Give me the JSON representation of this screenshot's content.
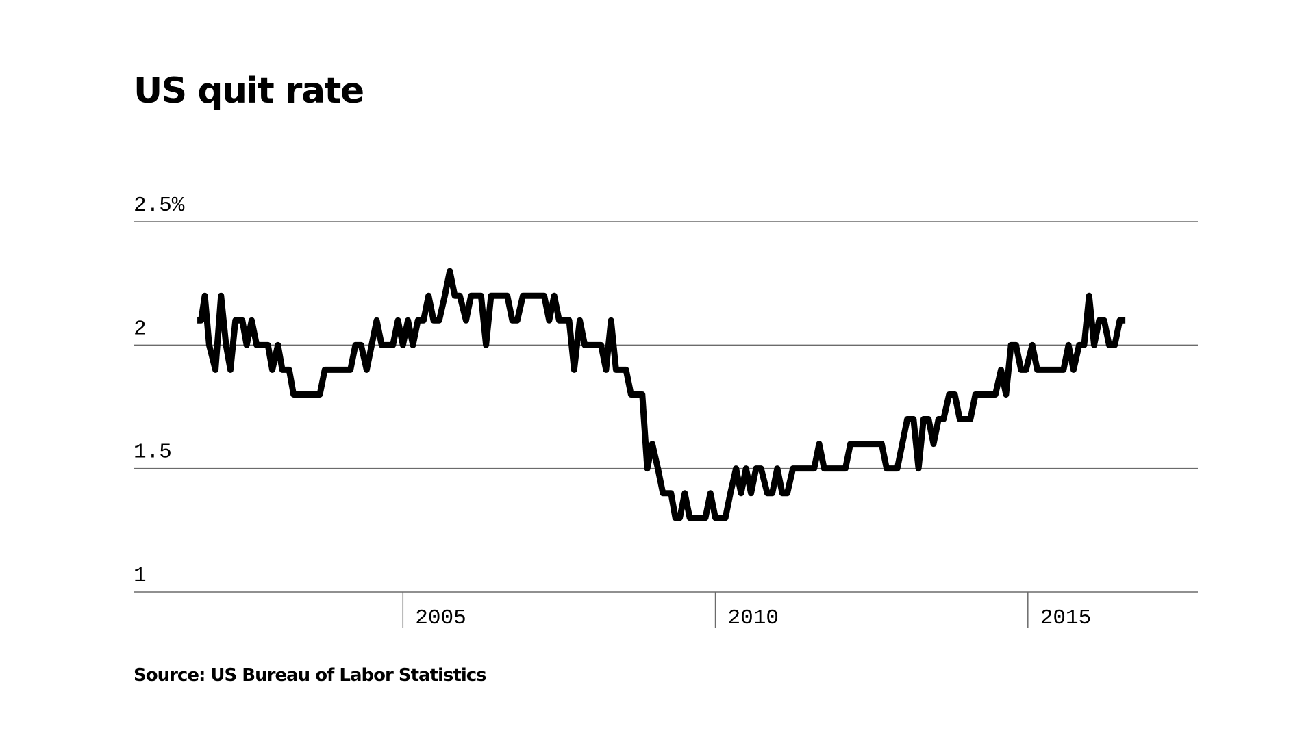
{
  "chart_data": {
    "type": "line",
    "title": "US quit rate",
    "source": "Source: US Bureau of Labor Statistics",
    "x": [
      2001.71,
      2001.77,
      2001.83,
      2001.9,
      2002.0,
      2002.09,
      2002.17,
      2002.24,
      2002.32,
      2002.43,
      2002.5,
      2002.58,
      2002.66,
      2002.84,
      2002.91,
      2003.0,
      2003.07,
      2003.18,
      2003.25,
      2003.67,
      2003.75,
      2004.16,
      2004.24,
      2004.33,
      2004.42,
      2004.58,
      2004.66,
      2004.84,
      2004.92,
      2005.0,
      2005.08,
      2005.16,
      2005.24,
      2005.33,
      2005.41,
      2005.49,
      2005.58,
      2005.67,
      2005.75,
      2005.83,
      2005.91,
      2006.01,
      2006.09,
      2006.25,
      2006.33,
      2006.41,
      2006.67,
      2006.75,
      2006.83,
      2006.92,
      2007.26,
      2007.34,
      2007.42,
      2007.5,
      2007.66,
      2007.74,
      2007.83,
      2007.91,
      2008.17,
      2008.25,
      2008.33,
      2008.41,
      2008.57,
      2008.65,
      2008.83,
      2008.91,
      2008.99,
      2009.08,
      2009.16,
      2009.29,
      2009.36,
      2009.43,
      2009.51,
      2009.59,
      2009.84,
      2009.92,
      2010.0,
      2010.16,
      2010.24,
      2010.33,
      2010.41,
      2010.49,
      2010.57,
      2010.65,
      2010.73,
      2010.83,
      2010.91,
      2010.99,
      2011.07,
      2011.15,
      2011.24,
      2011.58,
      2011.66,
      2011.74,
      2012.08,
      2012.16,
      2012.66,
      2012.74,
      2012.91,
      2012.99,
      2013.07,
      2013.17,
      2013.25,
      2013.33,
      2013.41,
      2013.49,
      2013.57,
      2013.65,
      2013.74,
      2013.83,
      2013.91,
      2014.08,
      2014.16,
      2014.48,
      2014.57,
      2014.65,
      2014.73,
      2014.81,
      2014.89,
      2014.97,
      2015.07,
      2015.15,
      2015.57,
      2015.65,
      2015.73,
      2015.82,
      2015.9,
      2015.98,
      2016.06,
      2016.14,
      2016.22,
      2016.3,
      2016.39,
      2016.47,
      2016.56
    ],
    "series": [
      {
        "color": "#000000",
        "values": [
          2.1,
          2.1,
          2.2,
          2.0,
          1.9,
          2.2,
          2.0,
          1.9,
          2.1,
          2.1,
          2.0,
          2.1,
          2.0,
          2.0,
          1.9,
          2.0,
          1.9,
          1.9,
          1.8,
          1.8,
          1.9,
          1.9,
          2.0,
          2.0,
          1.9,
          2.1,
          2.0,
          2.0,
          2.1,
          2.0,
          2.1,
          2.0,
          2.1,
          2.1,
          2.2,
          2.1,
          2.1,
          2.2,
          2.3,
          2.2,
          2.2,
          2.1,
          2.2,
          2.2,
          2.0,
          2.2,
          2.2,
          2.1,
          2.1,
          2.2,
          2.2,
          2.1,
          2.2,
          2.1,
          2.1,
          1.9,
          2.1,
          2.0,
          2.0,
          1.9,
          2.1,
          1.9,
          1.9,
          1.8,
          1.8,
          1.5,
          1.6,
          1.5,
          1.4,
          1.4,
          1.3,
          1.3,
          1.4,
          1.3,
          1.3,
          1.4,
          1.3,
          1.3,
          1.4,
          1.5,
          1.4,
          1.5,
          1.4,
          1.5,
          1.5,
          1.4,
          1.4,
          1.5,
          1.4,
          1.4,
          1.5,
          1.5,
          1.6,
          1.5,
          1.5,
          1.6,
          1.6,
          1.5,
          1.5,
          1.6,
          1.7,
          1.7,
          1.5,
          1.7,
          1.7,
          1.6,
          1.7,
          1.7,
          1.8,
          1.8,
          1.7,
          1.7,
          1.8,
          1.8,
          1.9,
          1.8,
          2.0,
          2.0,
          1.9,
          1.9,
          2.0,
          1.9,
          1.9,
          2.0,
          1.9,
          2.0,
          2.0,
          2.2,
          2.0,
          2.1,
          2.1,
          2.0,
          2.0,
          2.1,
          2.1
        ]
      }
    ],
    "xlim": [
      2000.69,
      2017.72
    ],
    "xticks": [
      2005,
      2010,
      2015
    ],
    "ylim": [
      1,
      2.5
    ],
    "yticks": [
      1,
      1.5,
      2,
      {
        "value": 2.5,
        "label": "2.5%"
      }
    ],
    "grid": true
  }
}
